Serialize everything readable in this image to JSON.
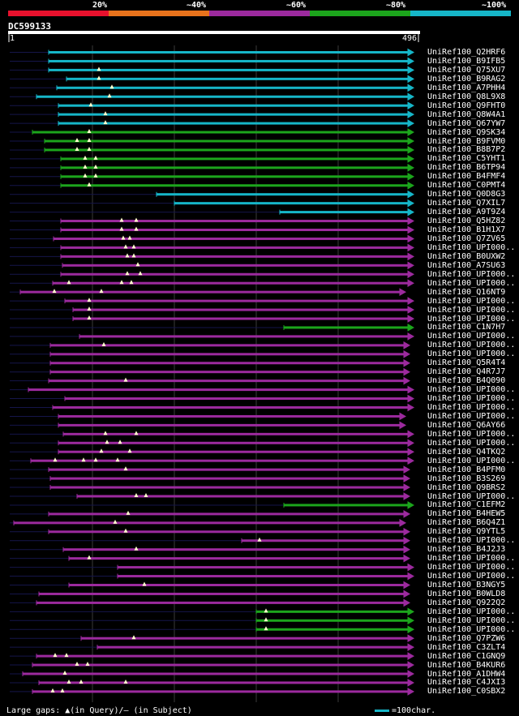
{
  "scale": {
    "labels": [
      "20%",
      "~40%",
      "~60%",
      "~80%",
      "~100%"
    ],
    "colors": [
      "#e8112d",
      "#e8731c",
      "#9c2a9e",
      "#1ca51c",
      "#16b6c8"
    ]
  },
  "query": {
    "id": "DC599133",
    "start": "1",
    "end": "496"
  },
  "footer": {
    "gap_text": "Large gaps: ▲(in Query)/– (in Subject)",
    "legend_text": "=100char.",
    "legend_color": "#16b6c8"
  },
  "colors": {
    "cyan": "#16b6c8",
    "green": "#1ca51c",
    "purple": "#9c2a9e",
    "tri": "#ffffcc"
  },
  "rows": [
    {
      "label": "UniRef100_Q2HRF6",
      "c": "cyan",
      "s": 60,
      "e": 510,
      "t": []
    },
    {
      "label": "UniRef100_B9IFB5",
      "c": "cyan",
      "s": 60,
      "e": 510,
      "t": []
    },
    {
      "label": "UniRef100_Q75XU7",
      "c": "cyan",
      "s": 60,
      "e": 510,
      "t": [
        122
      ]
    },
    {
      "label": "UniRef100_B9RAG2",
      "c": "cyan",
      "s": 82,
      "e": 510,
      "t": [
        122
      ]
    },
    {
      "label": "UniRef100_A7PHH4",
      "c": "cyan",
      "s": 70,
      "e": 510,
      "t": [
        138
      ]
    },
    {
      "label": "UniRef100_Q8L9X8",
      "c": "cyan",
      "s": 45,
      "e": 510,
      "t": [
        135
      ]
    },
    {
      "label": "UniRef100_Q9FHT0",
      "c": "cyan",
      "s": 72,
      "e": 510,
      "t": [
        112
      ]
    },
    {
      "label": "UniRef100_Q8W4A1",
      "c": "cyan",
      "s": 72,
      "e": 510,
      "t": [
        130
      ]
    },
    {
      "label": "UniRef100_Q67YW7",
      "c": "cyan",
      "s": 72,
      "e": 510,
      "t": [
        130
      ]
    },
    {
      "label": "UniRef100_Q9SK34",
      "c": "green",
      "s": 40,
      "e": 510,
      "t": [
        110
      ]
    },
    {
      "label": "UniRef100_B9FVM0",
      "c": "green",
      "s": 55,
      "e": 510,
      "t": [
        95,
        110
      ]
    },
    {
      "label": "UniRef100_B8B7P2",
      "c": "green",
      "s": 55,
      "e": 510,
      "t": [
        95,
        110
      ]
    },
    {
      "label": "UniRef100_C5YHT1",
      "c": "green",
      "s": 75,
      "e": 510,
      "t": [
        105,
        118
      ]
    },
    {
      "label": "UniRef100_B6TP94",
      "c": "green",
      "s": 75,
      "e": 510,
      "t": [
        105,
        118
      ]
    },
    {
      "label": "UniRef100_B4FMF4",
      "c": "green",
      "s": 75,
      "e": 510,
      "t": [
        105,
        118
      ]
    },
    {
      "label": "UniRef100_C0PMT4",
      "c": "green",
      "s": 75,
      "e": 510,
      "t": [
        110
      ]
    },
    {
      "label": "UniRef100_Q0D8G3",
      "c": "cyan",
      "s": 193,
      "e": 510,
      "t": []
    },
    {
      "label": "UniRef100_Q7XIL7",
      "c": "cyan",
      "s": 215,
      "e": 510,
      "t": []
    },
    {
      "label": "UniRef100_A9T9Z4",
      "c": "cyan",
      "s": 345,
      "e": 510,
      "t": []
    },
    {
      "label": "UniRef100_Q5HZ82",
      "c": "purple",
      "s": 75,
      "e": 510,
      "t": [
        150,
        168
      ]
    },
    {
      "label": "UniRef100_B1H1X7",
      "c": "purple",
      "s": 75,
      "e": 510,
      "t": [
        150,
        168
      ]
    },
    {
      "label": "UniRef100_Q7ZV65",
      "c": "purple",
      "s": 66,
      "e": 510,
      "t": [
        152,
        160
      ]
    },
    {
      "label": "UniRef100_UPI000..",
      "c": "purple",
      "s": 75,
      "e": 510,
      "t": [
        155,
        165
      ]
    },
    {
      "label": "UniRef100_B0UXW2",
      "c": "purple",
      "s": 75,
      "e": 510,
      "t": [
        157,
        165
      ]
    },
    {
      "label": "UniRef100_A7SU63",
      "c": "purple",
      "s": 77,
      "e": 510,
      "t": [
        170
      ]
    },
    {
      "label": "UniRef100_UPI000..",
      "c": "purple",
      "s": 75,
      "e": 510,
      "t": [
        157,
        173
      ]
    },
    {
      "label": "UniRef100_UPI000..",
      "c": "purple",
      "s": 65,
      "e": 510,
      "t": [
        85,
        150,
        162
      ]
    },
    {
      "label": "UniRef100_Q16NT9",
      "c": "purple",
      "s": 25,
      "e": 500,
      "t": [
        67,
        125
      ]
    },
    {
      "label": "UniRef100_UPI000..",
      "c": "purple",
      "s": 80,
      "e": 510,
      "t": [
        110
      ]
    },
    {
      "label": "UniRef100_UPI000..",
      "c": "purple",
      "s": 90,
      "e": 510,
      "t": [
        110
      ]
    },
    {
      "label": "UniRef100_UPI000..",
      "c": "purple",
      "s": 90,
      "e": 510,
      "t": [
        110
      ]
    },
    {
      "label": "UniRef100_C1N7H7",
      "c": "green",
      "s": 350,
      "e": 510,
      "t": []
    },
    {
      "label": "UniRef100_UPI000..",
      "c": "purple",
      "s": 98,
      "e": 510,
      "t": []
    },
    {
      "label": "UniRef100_UPI000..",
      "c": "purple",
      "s": 62,
      "e": 505,
      "t": [
        128
      ]
    },
    {
      "label": "UniRef100_UPI000..",
      "c": "purple",
      "s": 62,
      "e": 505,
      "t": []
    },
    {
      "label": "UniRef100_Q5R4T4",
      "c": "purple",
      "s": 62,
      "e": 505,
      "t": []
    },
    {
      "label": "UniRef100_Q4R7J7",
      "c": "purple",
      "s": 62,
      "e": 505,
      "t": []
    },
    {
      "label": "UniRef100_B4Q090",
      "c": "purple",
      "s": 60,
      "e": 505,
      "t": [
        155
      ]
    },
    {
      "label": "UniRef100_UPI000..",
      "c": "purple",
      "s": 35,
      "e": 510,
      "t": []
    },
    {
      "label": "UniRef100_UPI000..",
      "c": "purple",
      "s": 80,
      "e": 510,
      "t": []
    },
    {
      "label": "UniRef100_UPI000..",
      "c": "purple",
      "s": 65,
      "e": 510,
      "t": []
    },
    {
      "label": "UniRef100_UPI000..",
      "c": "purple",
      "s": 72,
      "e": 500,
      "t": []
    },
    {
      "label": "UniRef100_Q6AY66",
      "c": "purple",
      "s": 72,
      "e": 500,
      "t": []
    },
    {
      "label": "UniRef100_UPI000..",
      "c": "purple",
      "s": 78,
      "e": 510,
      "t": [
        130,
        168
      ]
    },
    {
      "label": "UniRef100_UPI000..",
      "c": "purple",
      "s": 72,
      "e": 510,
      "t": [
        132,
        148
      ]
    },
    {
      "label": "UniRef100_Q4TKQ2",
      "c": "purple",
      "s": 72,
      "e": 510,
      "t": [
        125,
        160
      ]
    },
    {
      "label": "UniRef100_UPI000..",
      "c": "purple",
      "s": 38,
      "e": 510,
      "t": [
        68,
        103,
        118,
        145
      ]
    },
    {
      "label": "UniRef100_B4PFM0",
      "c": "purple",
      "s": 60,
      "e": 505,
      "t": [
        155
      ]
    },
    {
      "label": "UniRef100_B3S269",
      "c": "purple",
      "s": 62,
      "e": 505,
      "t": []
    },
    {
      "label": "UniRef100_Q9BRS2",
      "c": "purple",
      "s": 62,
      "e": 505,
      "t": []
    },
    {
      "label": "UniRef100_UPI000..",
      "c": "purple",
      "s": 95,
      "e": 505,
      "t": [
        168,
        180
      ]
    },
    {
      "label": "UniRef100_C1EFM2",
      "c": "green",
      "s": 350,
      "e": 510,
      "t": []
    },
    {
      "label": "UniRef100_B4HEW5",
      "c": "purple",
      "s": 60,
      "e": 505,
      "t": [
        158
      ]
    },
    {
      "label": "UniRef100_B6Q4Z1",
      "c": "purple",
      "s": 17,
      "e": 500,
      "t": [
        142
      ]
    },
    {
      "label": "UniRef100_Q9YTL5",
      "c": "purple",
      "s": 60,
      "e": 505,
      "t": [
        155
      ]
    },
    {
      "label": "UniRef100_UPI000..",
      "c": "purple",
      "s": 298,
      "e": 505,
      "t": [
        320
      ]
    },
    {
      "label": "UniRef100_B4J2J3",
      "c": "purple",
      "s": 78,
      "e": 505,
      "t": [
        168
      ]
    },
    {
      "label": "UniRef100_UPI000..",
      "c": "purple",
      "s": 85,
      "e": 505,
      "t": [
        110
      ]
    },
    {
      "label": "UniRef100_UPI000..",
      "c": "purple",
      "s": 145,
      "e": 510,
      "t": []
    },
    {
      "label": "UniRef100_UPI000..",
      "c": "purple",
      "s": 145,
      "e": 510,
      "t": []
    },
    {
      "label": "UniRef100_B3NGY5",
      "c": "purple",
      "s": 85,
      "e": 505,
      "t": [
        178
      ]
    },
    {
      "label": "UniRef100_B0WLD8",
      "c": "purple",
      "s": 48,
      "e": 505,
      "t": []
    },
    {
      "label": "UniRef100_Q922Q2",
      "c": "purple",
      "s": 45,
      "e": 505,
      "t": []
    },
    {
      "label": "UniRef100_UPI000..",
      "c": "green",
      "s": 316,
      "e": 510,
      "t": [
        328
      ]
    },
    {
      "label": "UniRef100_UPI000..",
      "c": "green",
      "s": 316,
      "e": 510,
      "t": [
        328
      ]
    },
    {
      "label": "UniRef100_UPI000..",
      "c": "green",
      "s": 316,
      "e": 510,
      "t": [
        328
      ]
    },
    {
      "label": "UniRef100_Q7PZW6",
      "c": "purple",
      "s": 100,
      "e": 510,
      "t": [
        165
      ]
    },
    {
      "label": "UniRef100_C3ZLT4",
      "c": "purple",
      "s": 120,
      "e": 510,
      "t": []
    },
    {
      "label": "UniRef100_C1GNQ9",
      "c": "purple",
      "s": 45,
      "e": 510,
      "t": [
        68,
        82
      ]
    },
    {
      "label": "UniRef100_B4KUR6",
      "c": "purple",
      "s": 40,
      "e": 510,
      "t": [
        95,
        108
      ]
    },
    {
      "label": "UniRef100_A1DHW4",
      "c": "purple",
      "s": 28,
      "e": 510,
      "t": [
        80
      ]
    },
    {
      "label": "UniRef100_C4JXI3",
      "c": "purple",
      "s": 48,
      "e": 510,
      "t": [
        85,
        100,
        155
      ]
    },
    {
      "label": "UniRef100_C0SBX2",
      "c": "purple",
      "s": 40,
      "e": 510,
      "t": [
        65,
        77
      ]
    }
  ]
}
